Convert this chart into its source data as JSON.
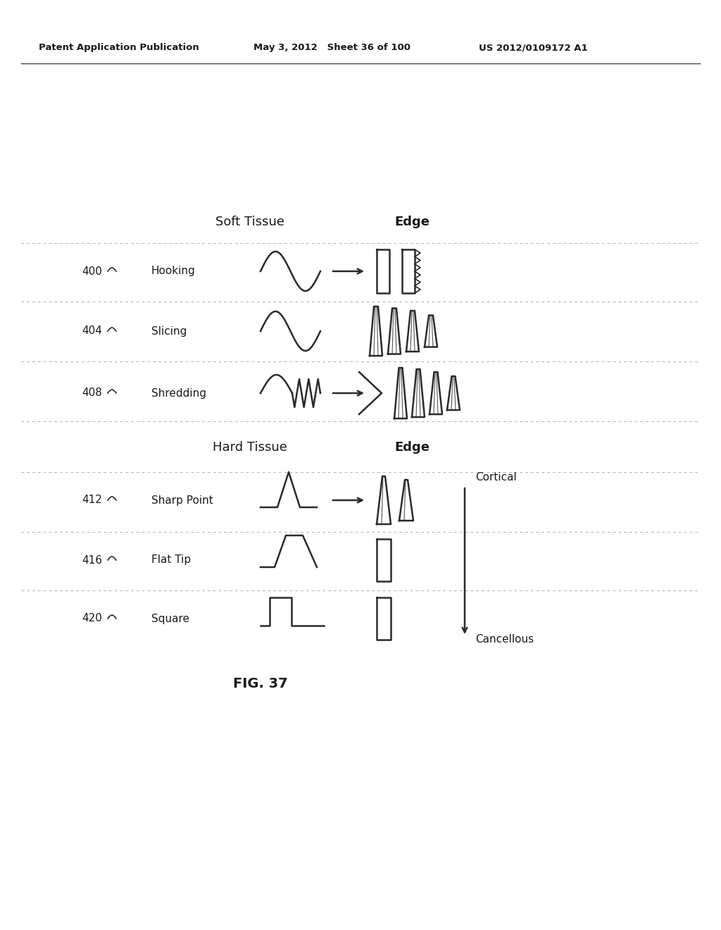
{
  "bg_color": "#ffffff",
  "header_left": "Patent Application Publication",
  "header_mid": "May 3, 2012   Sheet 36 of 100",
  "header_right": "US 2012/0109172 A1",
  "fig_label": "FIG. 37",
  "soft_tissue_label": "Soft Tissue",
  "edge_label_soft": "Edge",
  "hard_tissue_label": "Hard Tissue",
  "edge_label_hard": "Edge",
  "cortical_label": "Cortical",
  "cancellous_label": "Cancellous",
  "text_color": "#1a1a1a",
  "line_color": "#2a2a2a",
  "dashed_color": "#b0b0b0",
  "soft_rows": [
    {
      "num": "400",
      "name": "Hooking",
      "has_arrow": true
    },
    {
      "num": "404",
      "name": "Slicing",
      "has_arrow": false
    },
    {
      "num": "408",
      "name": "Shredding",
      "has_arrow": true
    }
  ],
  "hard_rows": [
    {
      "num": "412",
      "name": "Sharp Point",
      "has_arrow": true
    },
    {
      "num": "416",
      "name": "Flat Tip",
      "has_arrow": false
    },
    {
      "num": "420",
      "name": "Square",
      "has_arrow": false
    }
  ]
}
